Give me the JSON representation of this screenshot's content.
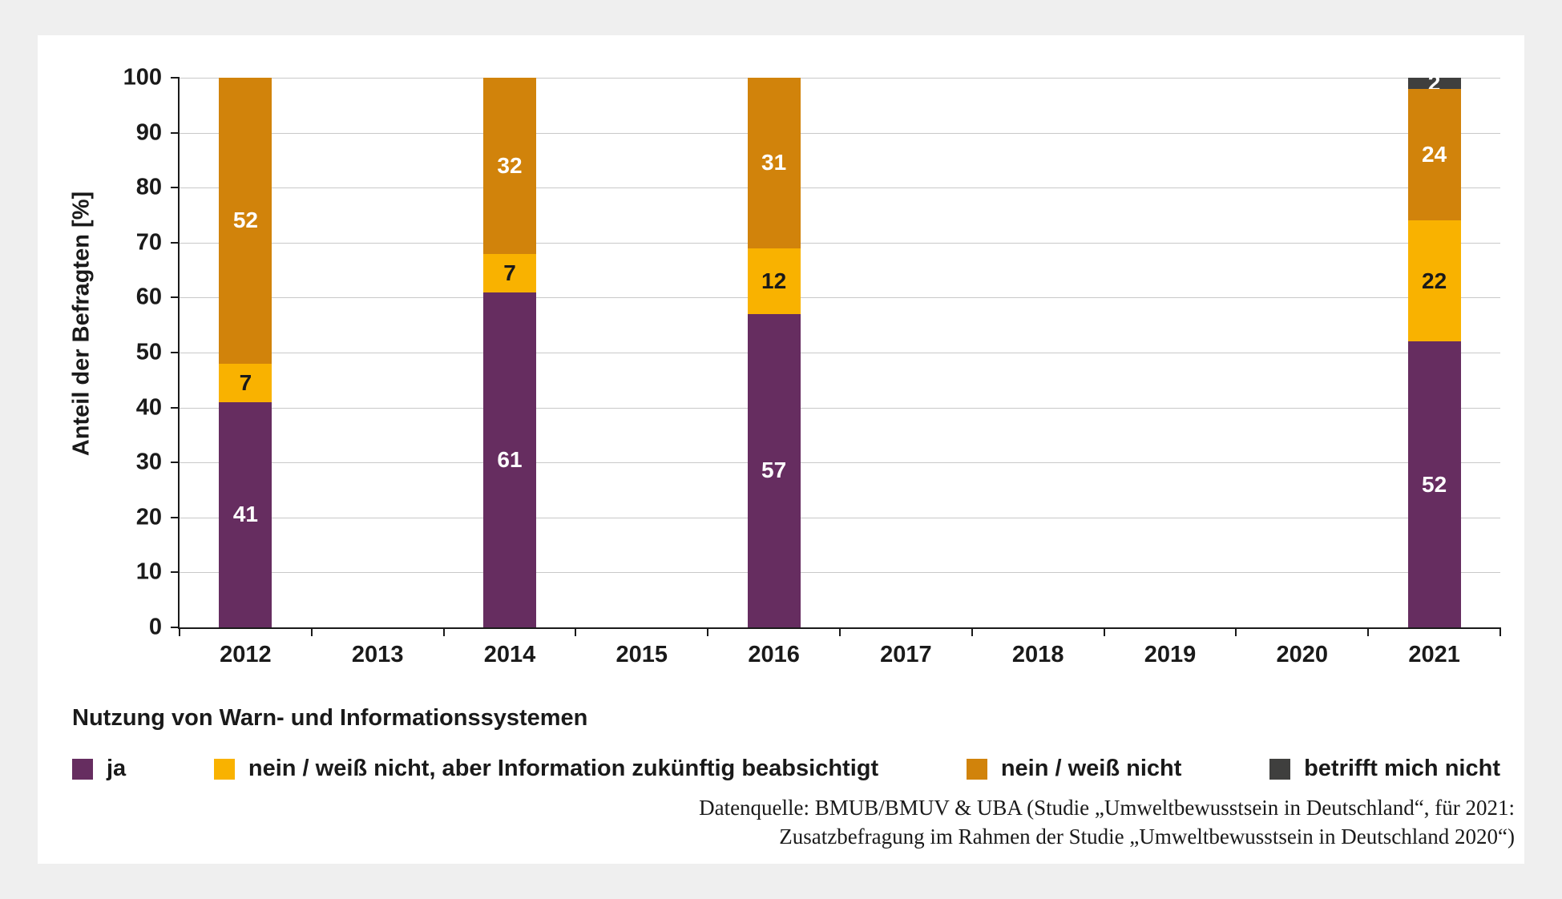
{
  "chart_data": {
    "type": "bar",
    "stacked": true,
    "legend_title": "Nutzung von Warn- und Informationssystemen",
    "ylabel": "Anteil der Befragten [%]",
    "ylim": [
      0,
      100
    ],
    "ytick_step": 10,
    "grid": true,
    "legend_position": "bottom",
    "categories": [
      "2012",
      "2013",
      "2014",
      "2015",
      "2016",
      "2017",
      "2018",
      "2019",
      "2020",
      "2021"
    ],
    "series": [
      {
        "name": "ja",
        "color": "#662d60",
        "text_color": "#ffffff",
        "values": {
          "2012": 41,
          "2014": 61,
          "2016": 57,
          "2021": 52
        }
      },
      {
        "name": "nein / weiß nicht, aber Information zukünftig beabsichtigt",
        "color": "#f9b200",
        "text_color": "#1a1a1a",
        "values": {
          "2012": 7,
          "2014": 7,
          "2016": 12,
          "2021": 22
        }
      },
      {
        "name": "nein / weiß nicht",
        "color": "#d1830b",
        "text_color": "#ffffff",
        "values": {
          "2012": 52,
          "2014": 32,
          "2016": 31,
          "2021": 24
        }
      },
      {
        "name": "betrifft mich nicht",
        "color": "#3f3f3e",
        "text_color": "#ffffff",
        "values": {
          "2021": 2
        }
      }
    ],
    "source_line1": "Datenquelle: BMUB/BMUV & UBA (Studie „Umweltbewusstsein in Deutschland“, für 2021:",
    "source_line2": "Zusatzbefragung im Rahmen der Studie „Umweltbewusstsein in Deutschland 2020“)"
  },
  "colors": {
    "background": "#efefef",
    "panel": "#ffffff",
    "axis": "#1a1a1a",
    "grid": "#c9c9c9"
  }
}
